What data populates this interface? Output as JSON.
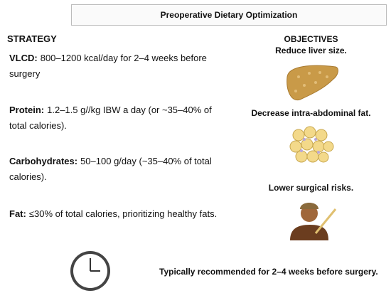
{
  "header": {
    "title": "Preoperative Dietary Optimization"
  },
  "strategy": {
    "heading": "STRATEGY",
    "items": [
      {
        "label": "VLCD:",
        "text": "800–1200 kcal/day for 2–4 weeks before surgery"
      },
      {
        "label": "Protein:",
        "text": "1.2–1.5 g//kg IBW a day (or ~35–40% of total calories)."
      },
      {
        "label": "Carbohydrates:",
        "text": "50–100 g/day (~35–40% of total calories)."
      },
      {
        "label": "Fat:",
        "text": "≤30% of total calories, prioritizing healthy fats."
      }
    ]
  },
  "objectives": {
    "heading": "OBJECTIVES",
    "items": [
      "Reduce liver size.",
      "Decrease intra-abdominal fat.",
      "Lower surgical risks."
    ]
  },
  "footer": {
    "text": "Typically recommended for 2–4 weeks before surgery."
  }
}
